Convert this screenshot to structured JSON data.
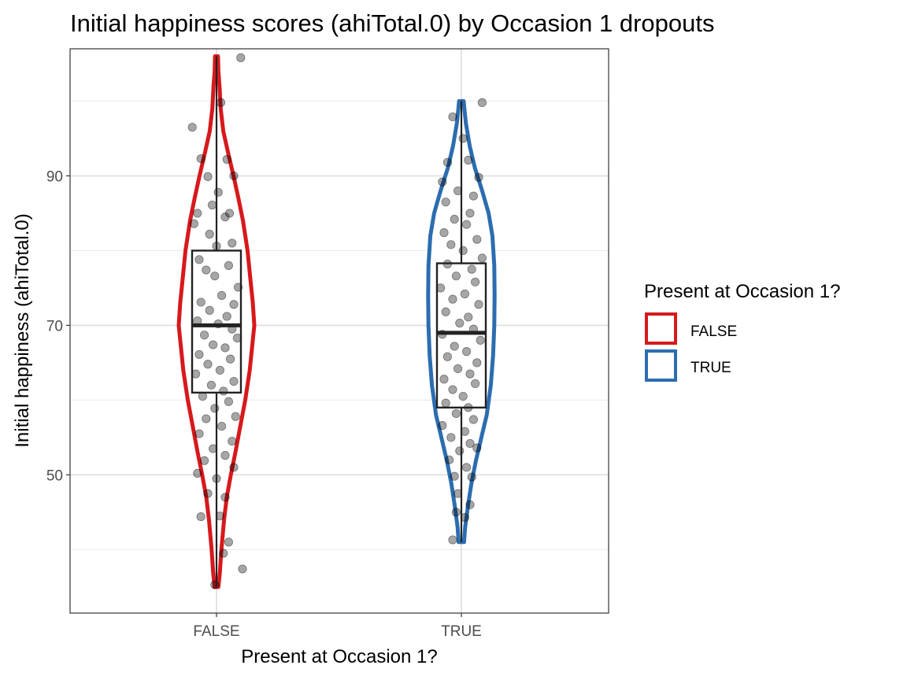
{
  "chart_data": {
    "type": "violin",
    "title": "Initial happiness scores (ahiTotal.0) by Occasion 1 dropouts",
    "xlabel": "Present at Occasion 1?",
    "ylabel": "Initial happiness (ahiTotal.0)",
    "categories": [
      "FALSE",
      "TRUE"
    ],
    "ylim": [
      31.5,
      107
    ],
    "yticks": [
      50,
      70,
      90
    ],
    "yminor": [
      40,
      60,
      80,
      100
    ],
    "grid": true,
    "legend": {
      "title": "Present at Occasion 1?",
      "position": "right",
      "entries": [
        "FALSE",
        "TRUE"
      ]
    },
    "colors": {
      "FALSE": "#d7191c",
      "TRUE": "#2c6db0"
    },
    "series": [
      {
        "name": "FALSE",
        "min": 35,
        "max": 106,
        "box": {
          "q1": 61,
          "median": 70,
          "q3": 80
        },
        "density_profile": [
          [
            35,
            0.05
          ],
          [
            37,
            0.09
          ],
          [
            40,
            0.13
          ],
          [
            44,
            0.2
          ],
          [
            47,
            0.27
          ],
          [
            50,
            0.38
          ],
          [
            53,
            0.5
          ],
          [
            56,
            0.61
          ],
          [
            60,
            0.76
          ],
          [
            64,
            0.88
          ],
          [
            67,
            0.94
          ],
          [
            70,
            1.0
          ],
          [
            73,
            0.96
          ],
          [
            76,
            0.9
          ],
          [
            80,
            0.82
          ],
          [
            84,
            0.7
          ],
          [
            87,
            0.58
          ],
          [
            90,
            0.45
          ],
          [
            93,
            0.31
          ],
          [
            96,
            0.18
          ],
          [
            99,
            0.11
          ],
          [
            102,
            0.08
          ],
          [
            104,
            0.05
          ],
          [
            106,
            0.04
          ]
        ],
        "points": [
          [
            -0.28,
            96.5
          ],
          [
            0.28,
            105.8
          ],
          [
            0.05,
            99.8
          ],
          [
            -0.18,
            92.3
          ],
          [
            0.12,
            92.2
          ],
          [
            -0.1,
            89.9
          ],
          [
            0.2,
            90.0
          ],
          [
            0.02,
            87.8
          ],
          [
            -0.22,
            85.0
          ],
          [
            0.15,
            85.0
          ],
          [
            -0.05,
            86.1
          ],
          [
            0.1,
            84.5
          ],
          [
            -0.26,
            83.6
          ],
          [
            -0.08,
            82.2
          ],
          [
            0.18,
            81.0
          ],
          [
            0.0,
            80.6
          ],
          [
            -0.2,
            78.8
          ],
          [
            0.14,
            78.0
          ],
          [
            -0.12,
            77.4
          ],
          [
            0.25,
            75.1
          ],
          [
            -0.02,
            76.6
          ],
          [
            0.06,
            74.0
          ],
          [
            -0.18,
            73.1
          ],
          [
            0.2,
            72.8
          ],
          [
            -0.08,
            72.0
          ],
          [
            0.12,
            71.2
          ],
          [
            -0.22,
            70.6
          ],
          [
            0.02,
            70.2
          ],
          [
            0.18,
            69.5
          ],
          [
            -0.14,
            68.7
          ],
          [
            0.24,
            68.3
          ],
          [
            -0.04,
            67.4
          ],
          [
            0.1,
            67.0
          ],
          [
            -0.2,
            66.1
          ],
          [
            0.16,
            65.5
          ],
          [
            -0.1,
            64.8
          ],
          [
            0.04,
            64.0
          ],
          [
            -0.24,
            63.5
          ],
          [
            0.2,
            62.5
          ],
          [
            -0.06,
            62.0
          ],
          [
            0.08,
            61.2
          ],
          [
            -0.16,
            60.5
          ],
          [
            0.14,
            59.8
          ],
          [
            -0.02,
            58.9
          ],
          [
            0.22,
            57.8
          ],
          [
            -0.12,
            57.5
          ],
          [
            0.06,
            56.5
          ],
          [
            -0.2,
            55.5
          ],
          [
            0.18,
            54.5
          ],
          [
            -0.04,
            53.5
          ],
          [
            0.1,
            52.6
          ],
          [
            -0.14,
            51.9
          ],
          [
            0.2,
            51.0
          ],
          [
            -0.22,
            50.2
          ],
          [
            0.0,
            49.5
          ],
          [
            -0.1,
            47.5
          ],
          [
            0.1,
            47.0
          ],
          [
            -0.18,
            44.4
          ],
          [
            0.04,
            44.5
          ],
          [
            0.14,
            41.0
          ],
          [
            0.08,
            39.5
          ],
          [
            0.3,
            37.4
          ],
          [
            -0.02,
            35.3
          ]
        ]
      },
      {
        "name": "TRUE",
        "min": 41,
        "max": 100,
        "box": {
          "q1": 59,
          "median": 69,
          "q3": 78.3
        },
        "density_profile": [
          [
            41,
            0.07
          ],
          [
            43,
            0.1
          ],
          [
            46,
            0.18
          ],
          [
            49,
            0.27
          ],
          [
            52,
            0.39
          ],
          [
            55,
            0.53
          ],
          [
            58,
            0.67
          ],
          [
            62,
            0.78
          ],
          [
            66,
            0.84
          ],
          [
            70,
            0.87
          ],
          [
            74,
            0.88
          ],
          [
            78,
            0.87
          ],
          [
            82,
            0.82
          ],
          [
            85,
            0.72
          ],
          [
            88,
            0.55
          ],
          [
            91,
            0.36
          ],
          [
            94,
            0.22
          ],
          [
            97,
            0.12
          ],
          [
            99,
            0.08
          ],
          [
            100,
            0.06
          ]
        ],
        "points": [
          [
            0.24,
            99.8
          ],
          [
            -0.1,
            97.9
          ],
          [
            0.02,
            95.0
          ],
          [
            -0.16,
            91.8
          ],
          [
            0.08,
            92.1
          ],
          [
            -0.22,
            89.2
          ],
          [
            0.2,
            89.8
          ],
          [
            -0.04,
            88.0
          ],
          [
            0.14,
            87.3
          ],
          [
            -0.18,
            86.5
          ],
          [
            0.1,
            85.0
          ],
          [
            -0.08,
            84.2
          ],
          [
            0.06,
            83.5
          ],
          [
            -0.2,
            82.4
          ],
          [
            0.18,
            81.5
          ],
          [
            -0.12,
            80.8
          ],
          [
            0.02,
            80.0
          ],
          [
            0.24,
            79.0
          ],
          [
            -0.16,
            78.2
          ],
          [
            0.12,
            77.5
          ],
          [
            -0.06,
            76.6
          ],
          [
            0.16,
            75.8
          ],
          [
            -0.24,
            75.0
          ],
          [
            0.04,
            74.2
          ],
          [
            -0.1,
            73.5
          ],
          [
            0.2,
            72.8
          ],
          [
            -0.18,
            71.8
          ],
          [
            0.08,
            71.1
          ],
          [
            -0.02,
            70.3
          ],
          [
            0.14,
            69.5
          ],
          [
            -0.22,
            68.8
          ],
          [
            0.22,
            68.0
          ],
          [
            -0.08,
            67.2
          ],
          [
            0.06,
            66.5
          ],
          [
            -0.16,
            65.8
          ],
          [
            0.18,
            65.0
          ],
          [
            -0.04,
            64.2
          ],
          [
            0.1,
            63.5
          ],
          [
            -0.2,
            62.8
          ],
          [
            0.16,
            62.2
          ],
          [
            -0.1,
            61.4
          ],
          [
            0.02,
            60.5
          ],
          [
            -0.18,
            59.6
          ],
          [
            0.08,
            59.0
          ],
          [
            -0.06,
            58.2
          ],
          [
            0.14,
            57.4
          ],
          [
            -0.22,
            56.6
          ],
          [
            0.04,
            55.8
          ],
          [
            -0.12,
            55.0
          ],
          [
            0.1,
            54.2
          ],
          [
            -0.02,
            53.2
          ],
          [
            0.18,
            53.6
          ],
          [
            -0.14,
            52.0
          ],
          [
            0.06,
            51.0
          ],
          [
            -0.08,
            49.8
          ],
          [
            0.12,
            49.7
          ],
          [
            -0.04,
            47.5
          ],
          [
            0.1,
            46.0
          ],
          [
            -0.06,
            45.0
          ],
          [
            0.04,
            44.3
          ],
          [
            -0.1,
            41.3
          ]
        ]
      }
    ]
  }
}
